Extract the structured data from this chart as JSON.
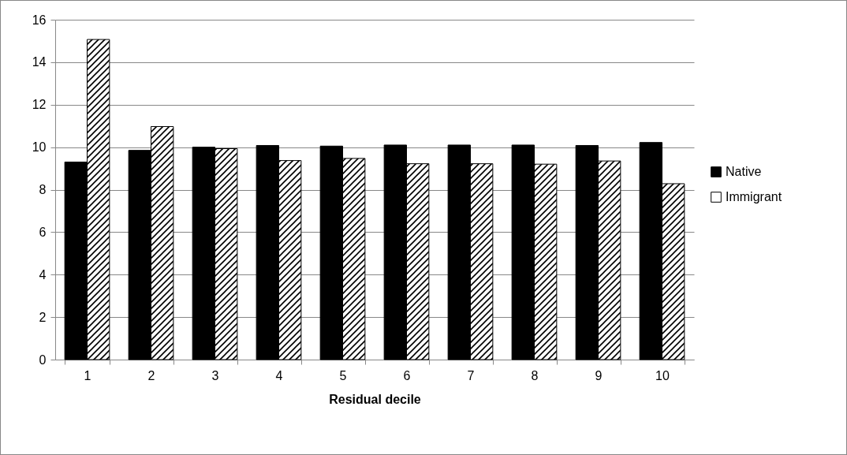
{
  "chart_data": {
    "type": "bar",
    "xlabel": "Residual decile",
    "categories": [
      "1",
      "2",
      "3",
      "4",
      "5",
      "6",
      "7",
      "8",
      "9",
      "10"
    ],
    "series": [
      {
        "name": "Native",
        "color": "#000000",
        "values": [
          9.3,
          9.85,
          10.0,
          10.08,
          10.05,
          10.1,
          10.1,
          10.1,
          10.08,
          10.22
        ]
      },
      {
        "name": "Immigrant",
        "color": "#ffffff",
        "values": [
          15.07,
          10.97,
          9.93,
          9.37,
          9.47,
          9.22,
          9.22,
          9.2,
          9.35,
          8.28
        ]
      }
    ],
    "ylim": [
      0,
      16
    ],
    "yticks": [
      0,
      2,
      4,
      6,
      8,
      10,
      12,
      14,
      16
    ],
    "grid": "y",
    "legend": "right"
  }
}
